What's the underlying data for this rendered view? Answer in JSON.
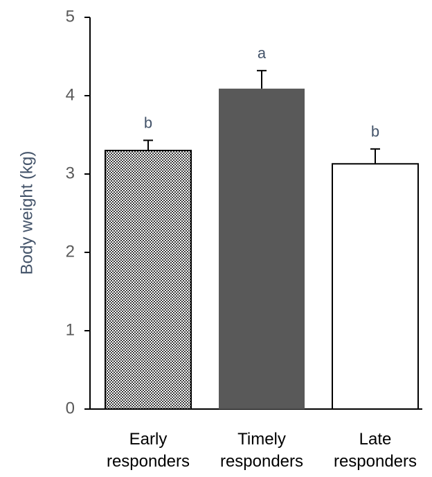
{
  "chart_data": {
    "type": "bar",
    "title": "",
    "xlabel": "",
    "ylabel": "Body weight (kg)",
    "ylim": [
      0,
      5
    ],
    "yticks": [
      "0",
      "1",
      "2",
      "3",
      "4",
      "5"
    ],
    "grid": false,
    "categories": [
      [
        "Early",
        "responders"
      ],
      [
        "Timely",
        "responders"
      ],
      [
        "Late",
        "responders"
      ]
    ],
    "values": [
      3.3,
      4.09,
      3.13
    ],
    "errors": [
      0.13,
      0.23,
      0.19
    ],
    "significance_letters": [
      "b",
      "a",
      "b"
    ],
    "bar_styles": [
      "checkered",
      "solid-dark",
      "hollow"
    ],
    "colors": {
      "dark_fill": "#595959",
      "outline": "#000000",
      "axis": "#000000"
    }
  }
}
